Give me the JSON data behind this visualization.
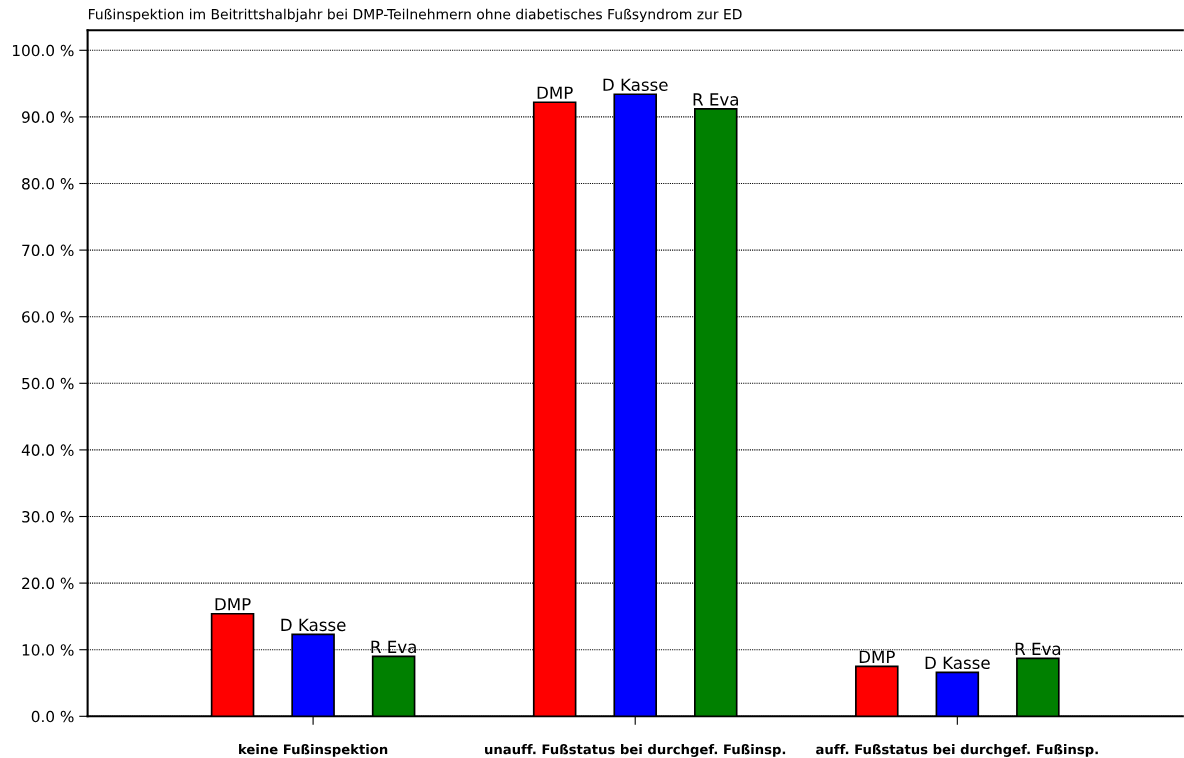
{
  "chart_data": {
    "type": "bar",
    "title": "Fußinspektion im Beitrittshalbjahr bei DMP-Teilnehmern ohne diabetisches Fußsyndrom zur ED",
    "categories": [
      "keine Fußinspektion",
      "unauff. Fußstatus bei durchgef. Fußinsp.",
      "auff. Fußstatus bei durchgef. Fußinsp."
    ],
    "series": [
      {
        "name": "DMP",
        "color": "#ff0000",
        "values": [
          15.4,
          92.2,
          7.5
        ]
      },
      {
        "name": "D Kasse",
        "color": "#0000ff",
        "values": [
          12.3,
          93.4,
          6.6
        ]
      },
      {
        "name": "R Eva",
        "color": "#008000",
        "values": [
          9.0,
          91.2,
          8.7
        ]
      }
    ],
    "ylim": [
      0,
      103
    ],
    "yticks": [
      {
        "value": 0,
        "label": "0.0 %"
      },
      {
        "value": 10,
        "label": "10.0 %"
      },
      {
        "value": 20,
        "label": "20.0 %"
      },
      {
        "value": 30,
        "label": "30.0 %"
      },
      {
        "value": 40,
        "label": "40.0 %"
      },
      {
        "value": 50,
        "label": "50.0 %"
      },
      {
        "value": 60,
        "label": "60.0 %"
      },
      {
        "value": 70,
        "label": "70.0 %"
      },
      {
        "value": 80,
        "label": "80.0 %"
      },
      {
        "value": 90,
        "label": "90.0 %"
      },
      {
        "value": 100,
        "label": "100.0 %"
      }
    ],
    "grid": "y",
    "legend": false
  }
}
